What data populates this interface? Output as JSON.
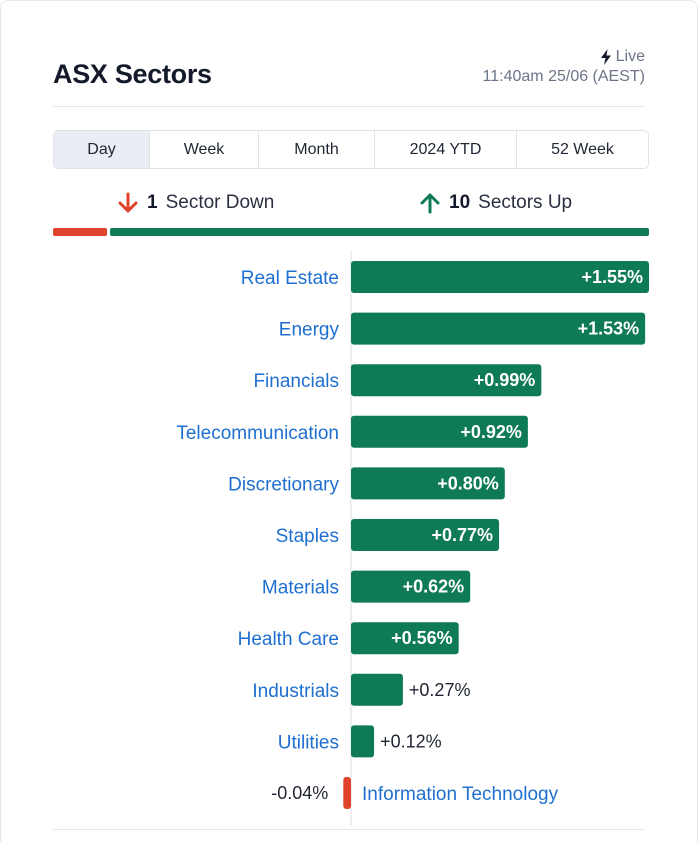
{
  "header": {
    "title": "ASX Sectors",
    "live_label": "Live",
    "timestamp": "11:40am 25/06 (AEST)"
  },
  "tabs": [
    {
      "label": "Day",
      "active": true
    },
    {
      "label": "Week",
      "active": false
    },
    {
      "label": "Month",
      "active": false
    },
    {
      "label": "2024 YTD",
      "active": false
    },
    {
      "label": "52 Week",
      "active": false
    }
  ],
  "summary": {
    "down_count": "1",
    "down_text": "Sector Down",
    "up_count": "10",
    "up_text": "Sectors Up"
  },
  "colors": {
    "positive": "#0f7a57",
    "negative": "#e0422c",
    "label": "#1f6fd1",
    "text": "#1f2533"
  },
  "icons": {
    "down": "arrow-down-icon",
    "up": "arrow-up-icon",
    "live": "lightning-bolt-icon"
  },
  "chart_data": {
    "type": "bar",
    "orientation": "horizontal",
    "categories": [
      "Real Estate",
      "Energy",
      "Financials",
      "Telecommunication",
      "Discretionary",
      "Staples",
      "Materials",
      "Health Care",
      "Industrials",
      "Utilities",
      "Information Technology"
    ],
    "values": [
      1.55,
      1.53,
      0.99,
      0.92,
      0.8,
      0.77,
      0.62,
      0.56,
      0.27,
      0.12,
      -0.04
    ],
    "value_labels": [
      "+1.55%",
      "+1.53%",
      "+0.99%",
      "+0.92%",
      "+0.80%",
      "+0.77%",
      "+0.62%",
      "+0.56%",
      "+0.27%",
      "+0.12%",
      "-0.04%"
    ],
    "unit": "%",
    "title": "",
    "xlabel": "",
    "ylabel": "",
    "grid": false,
    "legend": "none"
  }
}
